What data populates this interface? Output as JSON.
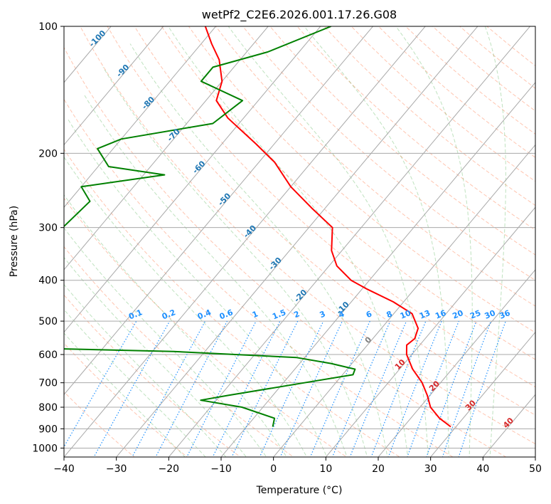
{
  "chart_data": {
    "type": "line",
    "subtype": "skew-t log-p",
    "title": "wetPf2_C2E6.2026.001.17.26.G08",
    "xlabel": "Temperature (°C)",
    "ylabel": "Pressure (hPa)",
    "xlim": [
      -40,
      50
    ],
    "ylim": [
      1050,
      100
    ],
    "y_scale": "log",
    "grid": true,
    "x_ticks": [
      -40,
      -30,
      -20,
      -10,
      0,
      10,
      20,
      30,
      40,
      50
    ],
    "x_tick_labels": [
      "−40",
      "−30",
      "−20",
      "−10",
      "0",
      "10",
      "20",
      "30",
      "40",
      "50"
    ],
    "y_ticks": [
      1000,
      900,
      800,
      700,
      600,
      500,
      400,
      300,
      200,
      100
    ],
    "y_tick_labels": [
      "1000",
      "900",
      "800",
      "700",
      "600",
      "500",
      "400",
      "300",
      "200",
      "100"
    ],
    "series": [
      {
        "role": "temperature",
        "color": "#ff0000",
        "points": [
          {
            "p": 890,
            "t": 29.0
          },
          {
            "p": 850,
            "t": 25.5
          },
          {
            "p": 800,
            "t": 22.0
          },
          {
            "p": 750,
            "t": 19.5
          },
          {
            "p": 700,
            "t": 16.5
          },
          {
            "p": 650,
            "t": 12.5
          },
          {
            "p": 600,
            "t": 9.0
          },
          {
            "p": 570,
            "t": 7.5
          },
          {
            "p": 550,
            "t": 8.0
          },
          {
            "p": 520,
            "t": 7.0
          },
          {
            "p": 480,
            "t": 3.5
          },
          {
            "p": 450,
            "t": -2.0
          },
          {
            "p": 420,
            "t": -9.0
          },
          {
            "p": 400,
            "t": -13.5
          },
          {
            "p": 370,
            "t": -18.5
          },
          {
            "p": 340,
            "t": -22.0
          },
          {
            "p": 300,
            "t": -25.5
          },
          {
            "p": 270,
            "t": -32.5
          },
          {
            "p": 240,
            "t": -40.0
          },
          {
            "p": 210,
            "t": -47.0
          },
          {
            "p": 190,
            "t": -53.5
          },
          {
            "p": 165,
            "t": -63.0
          },
          {
            "p": 150,
            "t": -68.0
          },
          {
            "p": 135,
            "t": -70.0
          },
          {
            "p": 120,
            "t": -74.0
          },
          {
            "p": 110,
            "t": -78.0
          },
          {
            "p": 100,
            "t": -82.0
          }
        ]
      },
      {
        "role": "dewpoint",
        "color": "#008000",
        "points": [
          {
            "p": 890,
            "t": -5.0
          },
          {
            "p": 850,
            "t": -6.0
          },
          {
            "p": 800,
            "t": -14.0
          },
          {
            "p": 770,
            "t": -23.0
          },
          {
            "p": 750,
            "t": -18.5
          },
          {
            "p": 700,
            "t": -6.0
          },
          {
            "p": 670,
            "t": 2.0
          },
          {
            "p": 650,
            "t": 1.5
          },
          {
            "p": 630,
            "t": -4.0
          },
          {
            "p": 610,
            "t": -11.5
          },
          {
            "p": 590,
            "t": -36.0
          },
          {
            "p": 580,
            "t": -62.0
          },
          {
            "p": 570,
            "t": -82.0
          },
          {
            "p": 420,
            "t": -93.0
          },
          {
            "p": 390,
            "t": -75.0
          },
          {
            "p": 360,
            "t": -73.0
          },
          {
            "p": 330,
            "t": -76.0
          },
          {
            "p": 300,
            "t": -77.0
          },
          {
            "p": 260,
            "t": -76.0
          },
          {
            "p": 240,
            "t": -80.0
          },
          {
            "p": 225,
            "t": -66.0
          },
          {
            "p": 215,
            "t": -78.0
          },
          {
            "p": 195,
            "t": -83.0
          },
          {
            "p": 185,
            "t": -80.0
          },
          {
            "p": 170,
            "t": -65.0
          },
          {
            "p": 150,
            "t": -63.0
          },
          {
            "p": 135,
            "t": -74.0
          },
          {
            "p": 125,
            "t": -74.0
          },
          {
            "p": 115,
            "t": -66.0
          },
          {
            "p": 100,
            "t": -58.0
          }
        ]
      }
    ],
    "annotations": {
      "isotherm_labels": [
        "-100",
        "-90",
        "-80",
        "-70",
        "-60",
        "-50",
        "-40",
        "-30",
        "-20",
        "-10",
        "0",
        "10",
        "20",
        "30",
        "40"
      ],
      "mixing_ratio_labels": [
        "0.1",
        "0.2",
        "0.4",
        "0.6",
        "1",
        "1.5",
        "2",
        "3",
        "4",
        "6",
        "8",
        "10",
        "13",
        "16",
        "20",
        "25",
        "30",
        "36"
      ]
    },
    "colors": {
      "isotherm_cold": "#1f77b4",
      "isotherm_warm": "#d62728",
      "isotherm_zero": "#808080",
      "mixing_ratio": "#1e90ff",
      "dry_adiabat": "#ff7f50",
      "moist_adiabat": "#2ca02c",
      "grid": "#a9a9a9"
    }
  }
}
